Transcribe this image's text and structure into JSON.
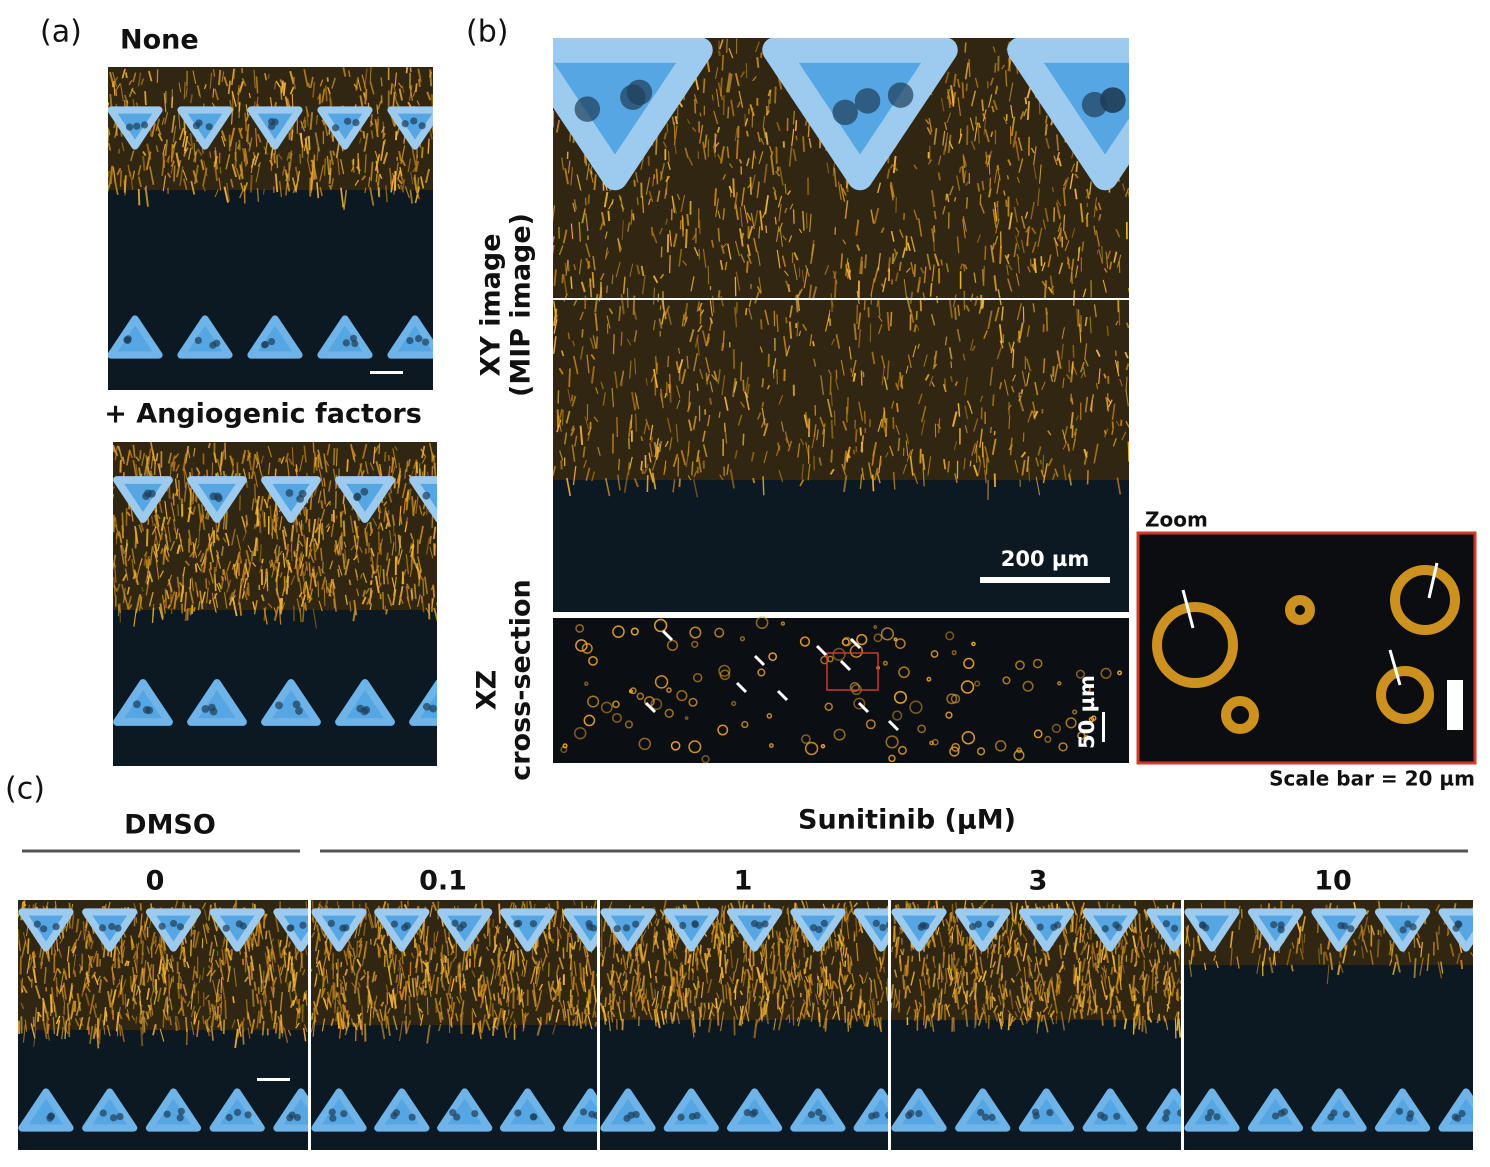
{
  "panel_a": {
    "label": "(a)",
    "conditions": [
      "None",
      "+ Angiogenic factors"
    ]
  },
  "panel_b": {
    "label": "(b)",
    "xy_label": [
      "XY image",
      "(MIP image)"
    ],
    "xz_label": [
      "XZ",
      "cross-section"
    ],
    "xy_scale": "200 µm",
    "xz_scale": "50 µm",
    "zoom_label": "Zoom",
    "zoom_scale": "Scale bar = 20 µm"
  },
  "panel_c": {
    "label": "(c)",
    "control_group": "DMSO",
    "treatment_group": "Sunitinib (µM)",
    "concentrations": [
      "0",
      "0.1",
      "1",
      "3",
      "10"
    ]
  }
}
